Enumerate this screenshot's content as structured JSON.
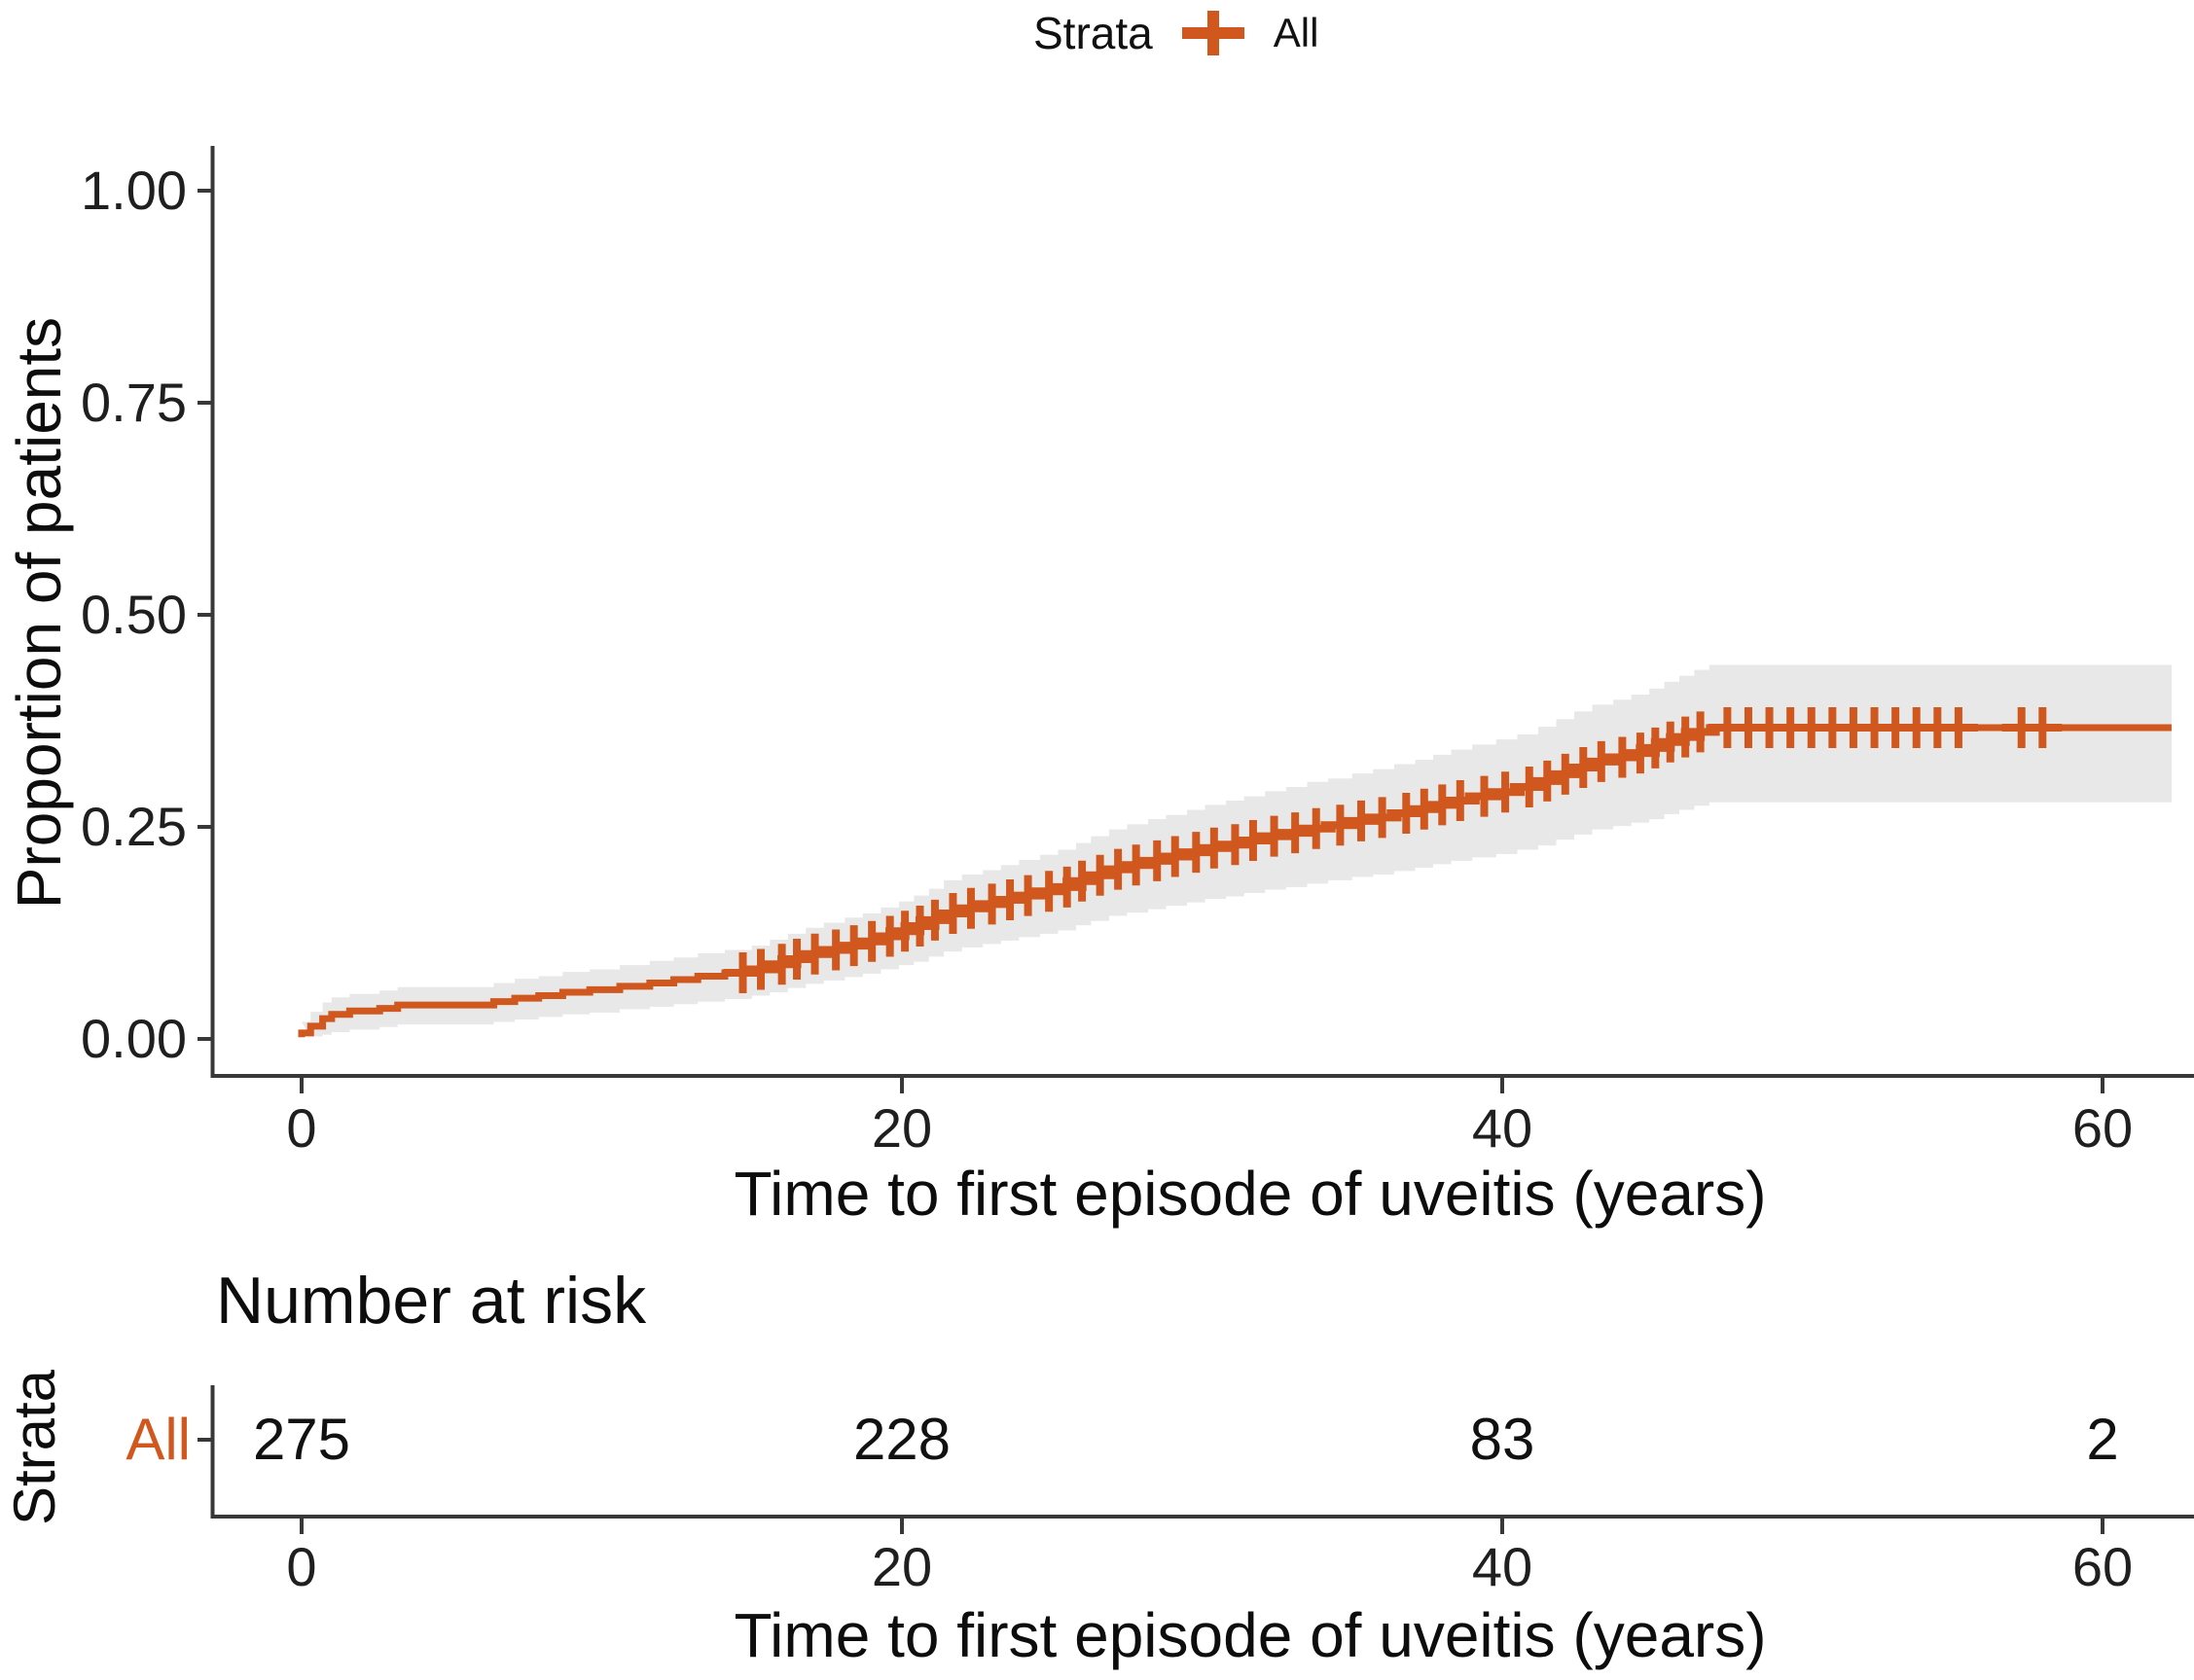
{
  "legend": {
    "title": "Strata",
    "items": [
      {
        "label": "All",
        "color": "#D0571D"
      }
    ]
  },
  "main_plot": {
    "ylabel": "Proportion of patients",
    "xlabel": "Time to first episode of uveitis (years)",
    "y_ticks": [
      "1.00",
      "0.75",
      "0.50",
      "0.25",
      "0.00"
    ],
    "x_ticks": [
      "0",
      "20",
      "40",
      "60"
    ]
  },
  "risk_table": {
    "title": "Number at risk",
    "ylabel": "Strata",
    "row_label": "All",
    "values": [
      "275",
      "228",
      "83",
      "2"
    ],
    "x_ticks": [
      "0",
      "20",
      "40",
      "60"
    ],
    "xlabel": "Time to first episode of uveitis (years)"
  },
  "chart_data": {
    "type": "line",
    "subtype": "kaplan-meier-cumulative-incidence-step",
    "title": "",
    "xlabel": "Time to first episode of uveitis (years)",
    "ylabel": "Proportion of patients",
    "xlim": [
      -3,
      63.1
    ],
    "ylim": [
      0,
      1
    ],
    "x_tick_values": [
      0,
      20,
      40,
      60
    ],
    "y_tick_values": [
      0,
      0.25,
      0.5,
      0.75,
      1.0
    ],
    "grid": false,
    "legend_position": "top",
    "strata_label": "Strata",
    "series": [
      {
        "name": "All",
        "color": "#D0571D",
        "ci_color": "#E8E8E8",
        "steps": [
          [
            0,
            0.007,
            0.002,
            0.02
          ],
          [
            0.3,
            0.015,
            0.003,
            0.032
          ],
          [
            0.7,
            0.024,
            0.005,
            0.043
          ],
          [
            1.0,
            0.029,
            0.008,
            0.049
          ],
          [
            1.6,
            0.033,
            0.011,
            0.053
          ],
          [
            2.6,
            0.036,
            0.014,
            0.057
          ],
          [
            3.2,
            0.04,
            0.017,
            0.061
          ],
          [
            6.4,
            0.044,
            0.02,
            0.066
          ],
          [
            7.1,
            0.048,
            0.023,
            0.071
          ],
          [
            7.9,
            0.051,
            0.026,
            0.074
          ],
          [
            8.7,
            0.055,
            0.029,
            0.079
          ],
          [
            9.6,
            0.058,
            0.031,
            0.082
          ],
          [
            10.6,
            0.062,
            0.035,
            0.087
          ],
          [
            11.6,
            0.066,
            0.038,
            0.092
          ],
          [
            12.4,
            0.07,
            0.041,
            0.096
          ],
          [
            13.2,
            0.074,
            0.044,
            0.101
          ],
          [
            14.1,
            0.078,
            0.047,
            0.105
          ],
          [
            15.0,
            0.082,
            0.051,
            0.11
          ],
          [
            15.6,
            0.088,
            0.055,
            0.117
          ],
          [
            16.2,
            0.094,
            0.06,
            0.124
          ],
          [
            16.8,
            0.1,
            0.065,
            0.131
          ],
          [
            17.4,
            0.105,
            0.069,
            0.137
          ],
          [
            18.1,
            0.11,
            0.073,
            0.143
          ],
          [
            18.7,
            0.115,
            0.077,
            0.148
          ],
          [
            19.3,
            0.121,
            0.082,
            0.155
          ],
          [
            19.9,
            0.127,
            0.087,
            0.162
          ],
          [
            20.4,
            0.133,
            0.091,
            0.169
          ],
          [
            20.9,
            0.14,
            0.097,
            0.177
          ],
          [
            21.4,
            0.148,
            0.103,
            0.187
          ],
          [
            22.0,
            0.154,
            0.108,
            0.194
          ],
          [
            22.7,
            0.159,
            0.112,
            0.199
          ],
          [
            23.3,
            0.164,
            0.116,
            0.205
          ],
          [
            23.9,
            0.169,
            0.12,
            0.211
          ],
          [
            24.6,
            0.174,
            0.124,
            0.217
          ],
          [
            25.2,
            0.179,
            0.128,
            0.223
          ],
          [
            25.8,
            0.186,
            0.134,
            0.231
          ],
          [
            26.3,
            0.193,
            0.139,
            0.239
          ],
          [
            26.9,
            0.2,
            0.145,
            0.247
          ],
          [
            27.5,
            0.205,
            0.149,
            0.253
          ],
          [
            28.2,
            0.21,
            0.153,
            0.259
          ],
          [
            28.8,
            0.215,
            0.157,
            0.264
          ],
          [
            29.5,
            0.22,
            0.161,
            0.27
          ],
          [
            30.1,
            0.225,
            0.165,
            0.276
          ],
          [
            30.8,
            0.229,
            0.168,
            0.281
          ],
          [
            31.4,
            0.234,
            0.172,
            0.286
          ],
          [
            32.1,
            0.239,
            0.176,
            0.292
          ],
          [
            32.8,
            0.243,
            0.179,
            0.297
          ],
          [
            33.5,
            0.248,
            0.183,
            0.303
          ],
          [
            34.2,
            0.252,
            0.187,
            0.307
          ],
          [
            35.0,
            0.257,
            0.191,
            0.313
          ],
          [
            35.7,
            0.261,
            0.194,
            0.318
          ],
          [
            36.4,
            0.266,
            0.198,
            0.324
          ],
          [
            37.1,
            0.271,
            0.202,
            0.329
          ],
          [
            37.7,
            0.276,
            0.206,
            0.335
          ],
          [
            38.3,
            0.281,
            0.21,
            0.341
          ],
          [
            39.0,
            0.286,
            0.214,
            0.347
          ],
          [
            39.8,
            0.291,
            0.218,
            0.353
          ],
          [
            40.5,
            0.297,
            0.223,
            0.359
          ],
          [
            41.2,
            0.304,
            0.228,
            0.368
          ],
          [
            41.8,
            0.312,
            0.235,
            0.377
          ],
          [
            42.4,
            0.32,
            0.241,
            0.386
          ],
          [
            43.0,
            0.327,
            0.247,
            0.394
          ],
          [
            43.7,
            0.332,
            0.251,
            0.4
          ],
          [
            44.3,
            0.337,
            0.255,
            0.406
          ],
          [
            44.9,
            0.343,
            0.259,
            0.413
          ],
          [
            45.4,
            0.35,
            0.265,
            0.421
          ],
          [
            45.9,
            0.356,
            0.27,
            0.428
          ],
          [
            46.4,
            0.362,
            0.275,
            0.435
          ],
          [
            46.9,
            0.367,
            0.279,
            0.441
          ],
          [
            62.3,
            0.367,
            0.279,
            0.441
          ]
        ],
        "censor_times": [
          14.7,
          15.3,
          16.0,
          16.5,
          17.1,
          17.8,
          18.4,
          19.0,
          19.6,
          20.1,
          20.6,
          21.1,
          21.7,
          22.3,
          23.0,
          23.6,
          24.2,
          24.9,
          25.5,
          26.0,
          26.6,
          27.2,
          27.8,
          28.5,
          29.1,
          29.8,
          30.4,
          31.1,
          31.7,
          32.4,
          33.1,
          33.8,
          34.6,
          35.3,
          36.0,
          36.8,
          37.4,
          38.0,
          38.6,
          39.4,
          40.1,
          40.9,
          41.5,
          42.1,
          42.7,
          43.3,
          44.0,
          44.6,
          45.1,
          45.6,
          46.1,
          46.6,
          47.5,
          48.2,
          48.9,
          49.6,
          50.3,
          51.0,
          51.7,
          52.4,
          53.1,
          53.8,
          54.5,
          55.2,
          57.3,
          58.0
        ]
      }
    ],
    "number_at_risk": {
      "times": [
        0,
        20,
        40,
        60
      ],
      "values": [
        275,
        228,
        83,
        2
      ]
    }
  }
}
